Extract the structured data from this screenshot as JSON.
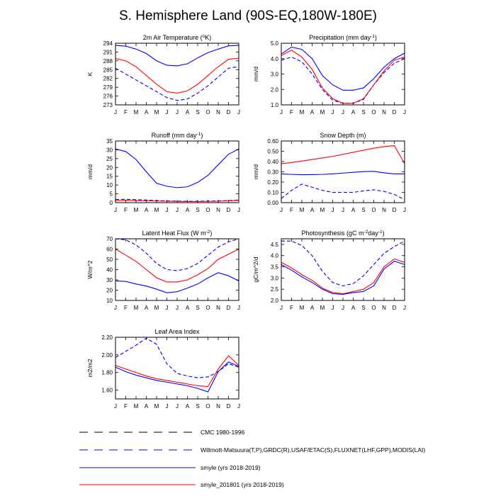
{
  "figure_title": "S. Hemisphere Land (90S-EQ,180W-180E)",
  "month_labels": [
    "J",
    "F",
    "M",
    "A",
    "M",
    "J",
    "J",
    "A",
    "S",
    "O",
    "N",
    "D",
    "J"
  ],
  "styles": {
    "cmc": {
      "color": "#000000",
      "dash": true
    },
    "obs": {
      "color": "#0000ff",
      "dash": true
    },
    "smyle": {
      "color": "#0000ff",
      "dash": false
    },
    "smyle_201801": {
      "color": "#ff0000",
      "dash": false
    }
  },
  "legend": [
    {
      "key": "cmc",
      "label": "CMC 1980-1996"
    },
    {
      "key": "obs",
      "label": "Willmott-Matsuura(T,P),GRDC(R),USAF/ETAC(S),FLUXNET(LHF,GPP),MODIS(LAI)"
    },
    {
      "key": "smyle",
      "label": "smyle (yrs 2018-2019)"
    },
    {
      "key": "smyle_201801",
      "label": "smyle_201801 (yrs 2018-2019)"
    }
  ],
  "chart_data": [
    {
      "type": "line",
      "id": "temp",
      "title_pre": "2m Air Temperature (",
      "title_sup": "o",
      "title_post": "K)",
      "ylabel": "K",
      "ylim": [
        273,
        294
      ],
      "yticks": [
        273,
        276,
        279,
        282,
        285,
        288,
        291,
        294
      ],
      "yticklabels": [
        "273",
        "276",
        "279",
        "282",
        "285",
        "288",
        "291",
        "294"
      ],
      "series": [
        {
          "name": "obs",
          "values": [
            285.5,
            283.5,
            281.5,
            279.5,
            277.5,
            275.5,
            274.5,
            275.0,
            277.0,
            279.5,
            282.5,
            285.5,
            286.0
          ]
        },
        {
          "name": "smyle",
          "values": [
            293.3,
            293.0,
            292.0,
            290.5,
            288.0,
            286.5,
            286.3,
            287.0,
            289.0,
            290.8,
            292.0,
            293.1,
            293.3
          ]
        },
        {
          "name": "smyle_201801",
          "values": [
            288.8,
            288.0,
            286.0,
            283.0,
            280.0,
            277.5,
            277.0,
            277.8,
            280.0,
            283.0,
            286.0,
            288.5,
            288.9
          ]
        }
      ]
    },
    {
      "type": "line",
      "id": "precip",
      "title_pre": "Precipitation (mm day",
      "title_sup": "-1",
      "title_post": ")",
      "ylabel": "mm/d",
      "ylim": [
        1.0,
        5.0
      ],
      "yticks": [
        1.0,
        2.0,
        3.0,
        4.0,
        5.0
      ],
      "yticklabels": [
        "1.0",
        "2.0",
        "3.0",
        "4.0",
        "5.0"
      ],
      "series": [
        {
          "name": "obs",
          "values": [
            3.9,
            4.1,
            3.8,
            3.0,
            2.0,
            1.3,
            1.1,
            1.1,
            1.35,
            2.3,
            3.1,
            3.7,
            4.0
          ]
        },
        {
          "name": "smyle",
          "values": [
            4.3,
            4.75,
            4.6,
            4.0,
            2.9,
            2.3,
            1.95,
            1.95,
            2.1,
            2.7,
            3.45,
            4.0,
            4.35
          ]
        },
        {
          "name": "smyle_201801",
          "values": [
            4.2,
            4.55,
            4.1,
            3.3,
            2.1,
            1.4,
            1.1,
            1.1,
            1.4,
            2.3,
            3.2,
            3.9,
            4.1
          ]
        }
      ]
    },
    {
      "type": "line",
      "id": "runoff",
      "title_pre": "Runoff (mm day",
      "title_sup": "-1",
      "title_post": ")",
      "ylabel": "mm/d",
      "ylim": [
        0,
        35
      ],
      "yticks": [
        0,
        5,
        10,
        15,
        20,
        25,
        30,
        35
      ],
      "yticklabels": [
        "0",
        "5",
        "10",
        "15",
        "20",
        "25",
        "30",
        "35"
      ],
      "series": [
        {
          "name": "obs",
          "values": [
            1.8,
            1.9,
            1.7,
            1.5,
            1.2,
            1.0,
            0.9,
            0.8,
            0.8,
            0.9,
            1.0,
            1.2,
            1.5
          ]
        },
        {
          "name": "smyle",
          "values": [
            30.5,
            29.0,
            24.5,
            17.5,
            11.0,
            9.3,
            8.5,
            9.0,
            11.5,
            15.5,
            21.5,
            27.5,
            30.5
          ]
        },
        {
          "name": "smyle_201801",
          "values": [
            1.2,
            1.3,
            1.2,
            1.1,
            0.9,
            0.8,
            0.7,
            0.6,
            0.6,
            0.7,
            0.8,
            1.0,
            1.3
          ]
        }
      ]
    },
    {
      "type": "line",
      "id": "snow",
      "title_pre": "Snow Depth (m)",
      "title_sup": "",
      "title_post": "",
      "ylabel": "mm/d",
      "ylim": [
        0.0,
        0.6
      ],
      "yticks": [
        0.0,
        0.1,
        0.2,
        0.3,
        0.4,
        0.5,
        0.6
      ],
      "yticklabels": [
        "0.00",
        "0.10",
        "0.20",
        "0.30",
        "0.40",
        "0.50",
        "0.60"
      ],
      "series": [
        {
          "name": "obs",
          "values": [
            0.04,
            0.12,
            0.18,
            0.15,
            0.12,
            0.1,
            0.1,
            0.1,
            0.115,
            0.125,
            0.11,
            0.08,
            0.03
          ]
        },
        {
          "name": "smyle",
          "values": [
            0.28,
            0.275,
            0.272,
            0.273,
            0.275,
            0.28,
            0.288,
            0.295,
            0.302,
            0.305,
            0.29,
            0.28,
            0.28
          ]
        },
        {
          "name": "smyle_201801",
          "values": [
            0.38,
            0.39,
            0.405,
            0.42,
            0.435,
            0.45,
            0.47,
            0.49,
            0.51,
            0.53,
            0.545,
            0.555,
            0.38
          ]
        }
      ]
    },
    {
      "type": "line",
      "id": "lhf",
      "title_pre": "Latent Heat Flux (W m",
      "title_sup": "-2",
      "title_post": ")",
      "ylabel": "W/m^2",
      "ylim": [
        10,
        70
      ],
      "yticks": [
        10,
        20,
        30,
        40,
        50,
        60,
        70
      ],
      "yticklabels": [
        "10",
        "20",
        "30",
        "40",
        "50",
        "60",
        "70"
      ],
      "series": [
        {
          "name": "obs",
          "values": [
            70,
            69,
            64,
            56,
            46,
            40,
            39,
            41,
            46,
            54,
            62,
            67,
            70
          ]
        },
        {
          "name": "smyle",
          "values": [
            29,
            28.5,
            26,
            24,
            21,
            17.5,
            18.5,
            22,
            26,
            32,
            37,
            34,
            29
          ]
        },
        {
          "name": "smyle_201801",
          "values": [
            60,
            54,
            48,
            40,
            32,
            28,
            28,
            30,
            35,
            41,
            50,
            55,
            60
          ]
        }
      ]
    },
    {
      "type": "line",
      "id": "gpp",
      "title_pre": "Photosynthesis (gC m",
      "title_sup": "-2",
      "title_post": "day",
      "title_sup2": "-1",
      "title_post2": ")",
      "ylabel": "gC/m^2/d",
      "ylim": [
        2.0,
        4.75
      ],
      "yticks": [
        2.0,
        2.5,
        3.0,
        3.5,
        4.0,
        4.5
      ],
      "yticklabels": [
        "2.0",
        "2.5",
        "3.0",
        "3.5",
        "4.0",
        "4.5"
      ],
      "series": [
        {
          "name": "obs",
          "values": [
            4.65,
            4.65,
            4.45,
            4.0,
            3.3,
            2.8,
            2.65,
            2.75,
            3.1,
            3.6,
            4.1,
            4.4,
            4.65
          ]
        },
        {
          "name": "smyle",
          "values": [
            3.6,
            3.35,
            3.05,
            2.8,
            2.5,
            2.3,
            2.27,
            2.35,
            2.4,
            2.65,
            3.4,
            3.75,
            3.6
          ]
        },
        {
          "name": "smyle_201801",
          "values": [
            3.7,
            3.45,
            3.15,
            2.9,
            2.55,
            2.35,
            2.3,
            2.4,
            2.5,
            2.8,
            3.5,
            3.85,
            3.7
          ]
        }
      ]
    },
    {
      "type": "line",
      "id": "lai",
      "title_pre": "Leaf Area Index",
      "title_sup": "",
      "title_post": "",
      "ylabel": "m2/m2",
      "ylim": [
        1.5,
        2.2
      ],
      "yticks": [
        1.6,
        1.8,
        2.0,
        2.2
      ],
      "yticklabels": [
        "1.60",
        "1.80",
        "2.00",
        "2.20"
      ],
      "series": [
        {
          "name": "obs",
          "values": [
            1.97,
            2.04,
            2.11,
            2.19,
            2.12,
            1.9,
            1.79,
            1.76,
            1.74,
            1.75,
            1.81,
            1.9,
            1.86
          ]
        },
        {
          "name": "smyle",
          "values": [
            1.86,
            1.81,
            1.77,
            1.74,
            1.71,
            1.69,
            1.67,
            1.65,
            1.62,
            1.58,
            1.81,
            1.92,
            1.87
          ]
        },
        {
          "name": "smyle_201801",
          "values": [
            1.88,
            1.84,
            1.8,
            1.76,
            1.73,
            1.71,
            1.69,
            1.67,
            1.65,
            1.64,
            1.84,
            1.99,
            1.88
          ]
        }
      ]
    }
  ]
}
